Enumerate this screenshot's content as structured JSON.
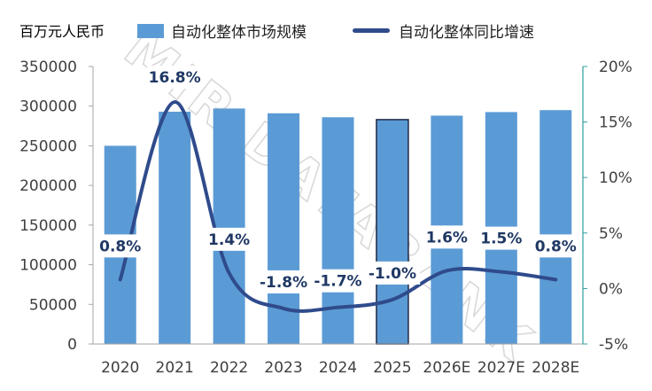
{
  "chart_data": {
    "type": "bar",
    "title": "",
    "unit_label": "百万元人民币",
    "categories": [
      "2020",
      "2021",
      "2022",
      "2023",
      "2024",
      "2025",
      "2026E",
      "2027E",
      "2028E"
    ],
    "series": [
      {
        "name": "自动化整体市场规模",
        "kind": "bar",
        "axis": "left",
        "color": "#5b9bd5",
        "values": [
          250000,
          293000,
          297000,
          291000,
          286000,
          283000,
          288000,
          292500,
          295000
        ]
      },
      {
        "name": "自动化整体同比增速",
        "kind": "line",
        "axis": "right",
        "color": "#2f4b8c",
        "values": [
          0.8,
          16.8,
          1.4,
          -1.8,
          -1.7,
          -1.0,
          1.6,
          1.5,
          0.8
        ],
        "labels": [
          "0.8%",
          "16.8%",
          "1.4%",
          "-1.8%",
          "-1.7%",
          "-1.0%",
          "1.6%",
          "1.5%",
          "0.8%"
        ]
      }
    ],
    "highlight_category": "2025",
    "left_axis": {
      "min": 0,
      "max": 350000,
      "ticks": [
        "0",
        "50000",
        "100000",
        "150000",
        "200000",
        "250000",
        "300000",
        "350000"
      ]
    },
    "right_axis": {
      "min": -5,
      "max": 20,
      "ticks": [
        "-5%",
        "0%",
        "5%",
        "10%",
        "15%",
        "20%"
      ]
    },
    "watermark": "MIR DATABANK",
    "legend_position": "top"
  }
}
